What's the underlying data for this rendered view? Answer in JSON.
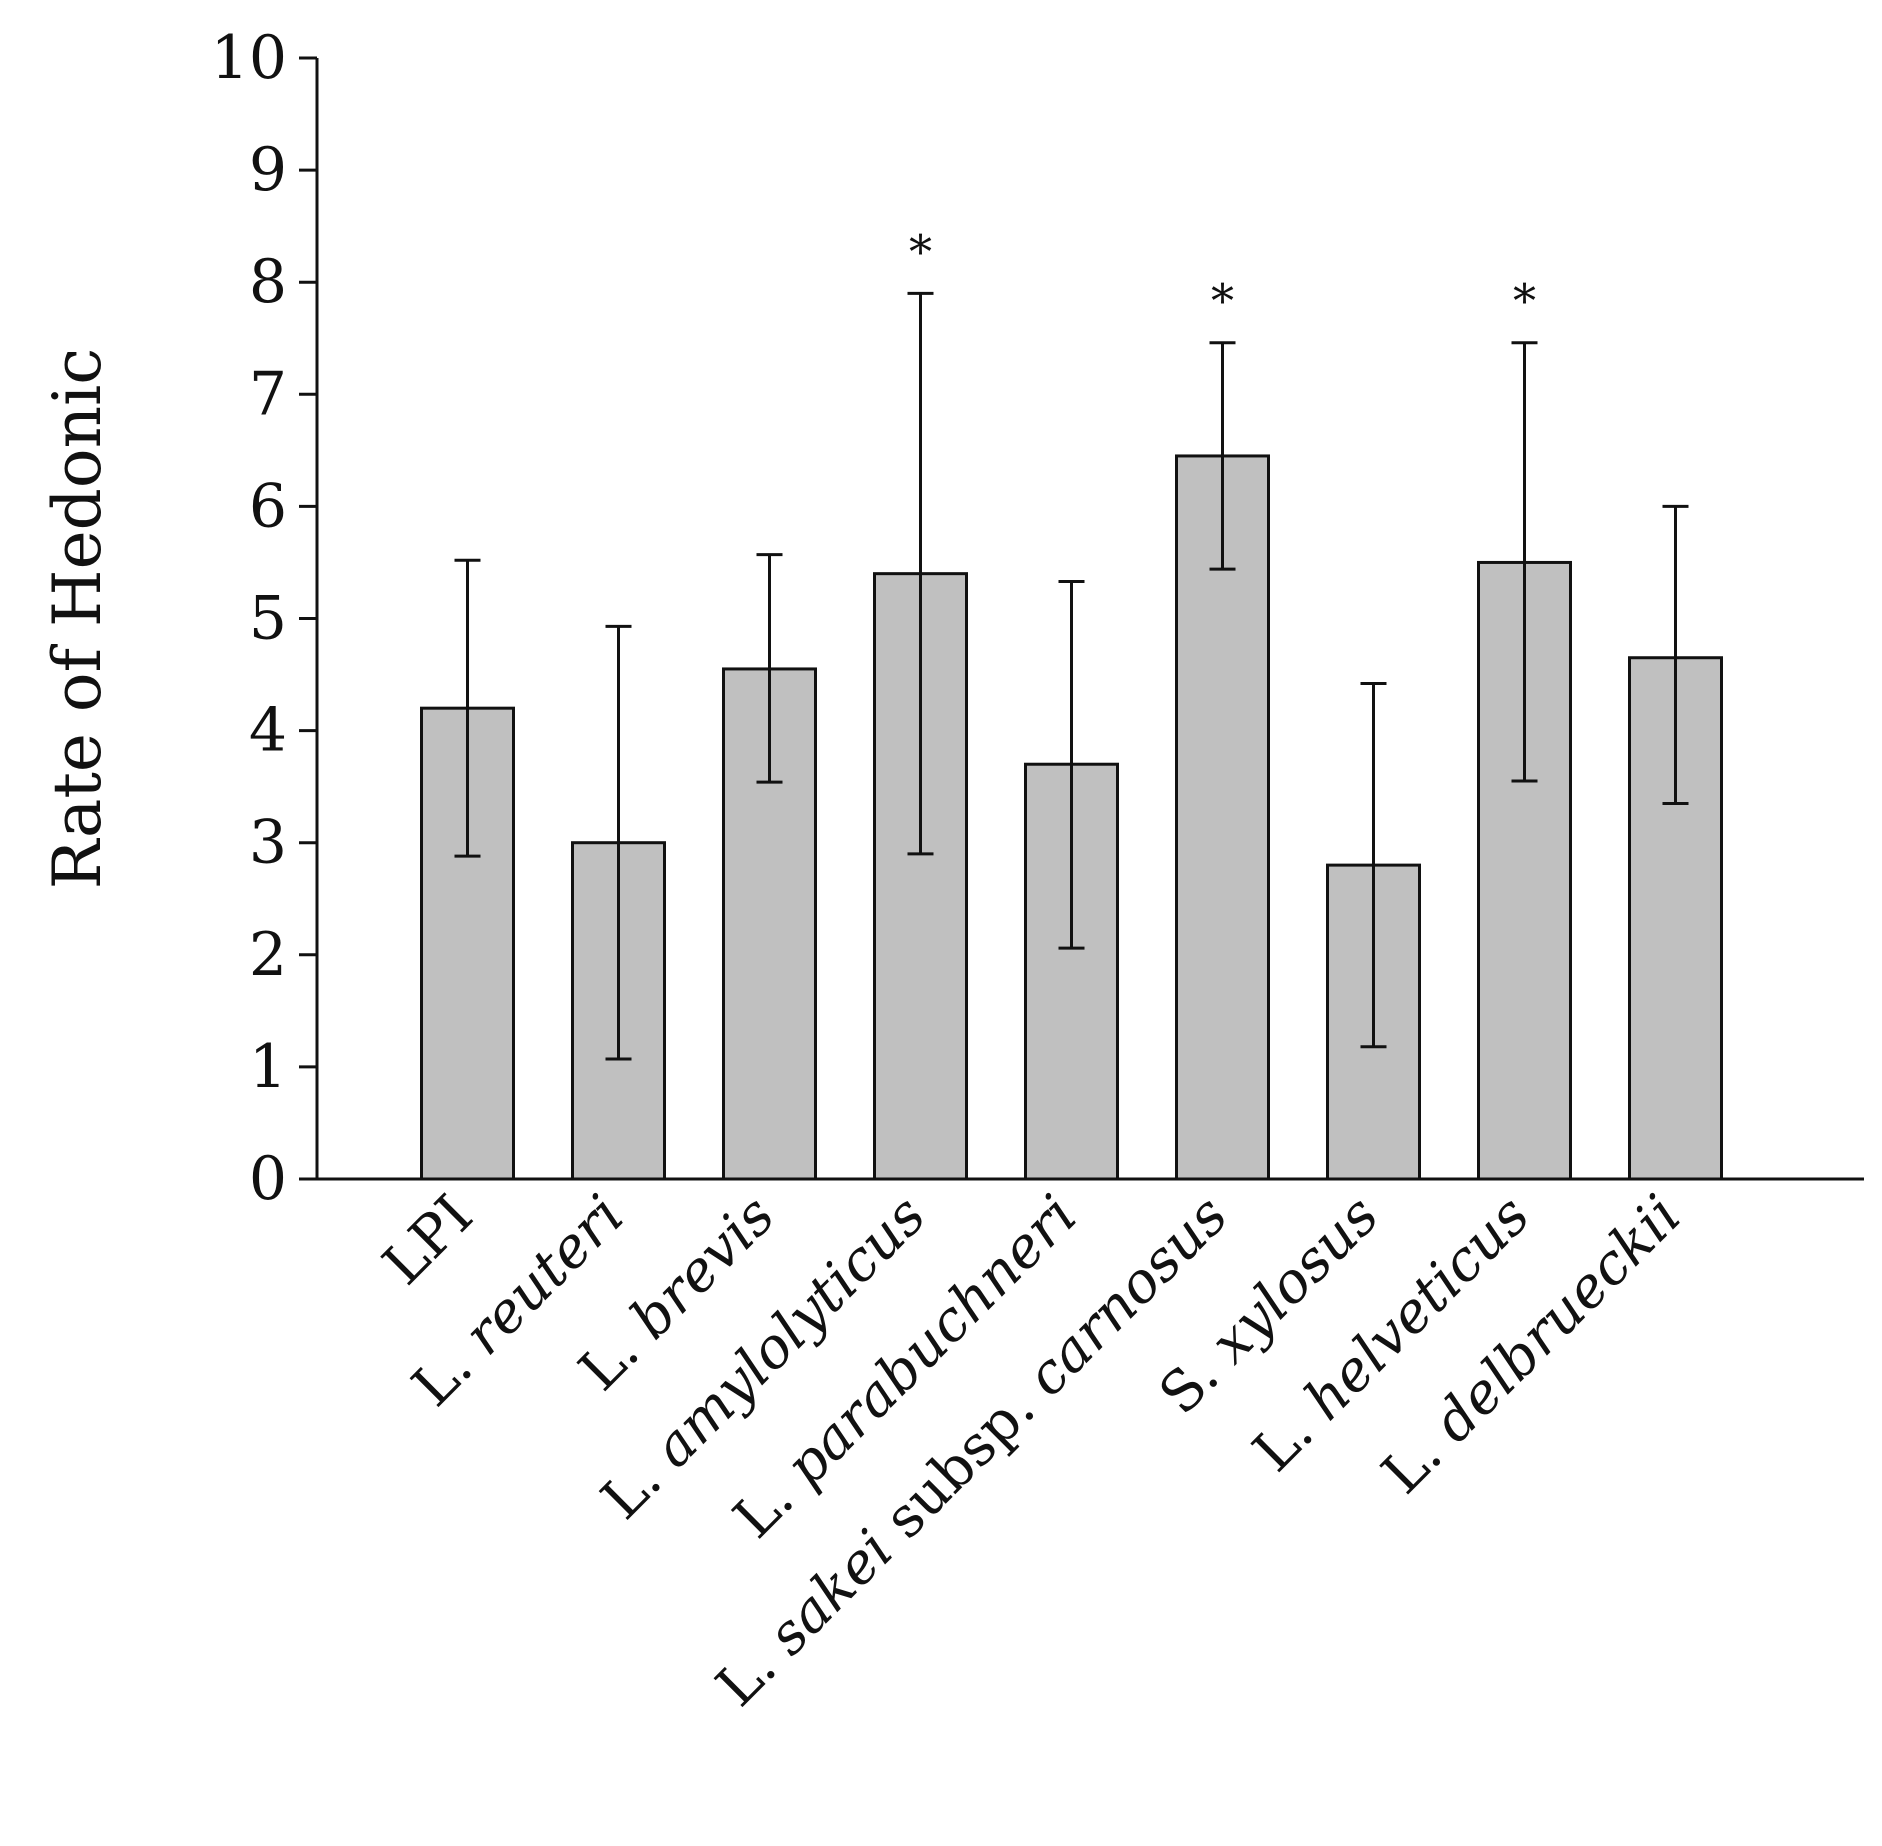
{
  "chart_data": {
    "type": "bar",
    "title": "",
    "xlabel": "",
    "ylabel": "Rate of Hedonic",
    "ylim": [
      0,
      10
    ],
    "yticks": [
      0,
      1,
      2,
      3,
      4,
      5,
      6,
      7,
      8,
      9,
      10
    ],
    "grid": false,
    "categories": [
      {
        "label": "LPI",
        "parts": [
          {
            "text": "LPI",
            "italic": false
          }
        ]
      },
      {
        "label": "L. reuteri",
        "parts": [
          {
            "text": "L. ",
            "italic": false
          },
          {
            "text": "reuteri",
            "italic": true
          }
        ]
      },
      {
        "label": "L. brevis",
        "parts": [
          {
            "text": "L. ",
            "italic": false
          },
          {
            "text": "brevis",
            "italic": true
          }
        ]
      },
      {
        "label": "L. amylolyticus",
        "parts": [
          {
            "text": "L. ",
            "italic": false
          },
          {
            "text": "amylolyticus",
            "italic": true
          }
        ]
      },
      {
        "label": "L. parabuchneri",
        "parts": [
          {
            "text": "L. ",
            "italic": false
          },
          {
            "text": "parabuchneri",
            "italic": true
          }
        ]
      },
      {
        "label": "L. sakei subsp. carnosus",
        "parts": [
          {
            "text": "L. ",
            "italic": false
          },
          {
            "text": "sakei",
            "italic": true
          },
          {
            "text": " subsp. ",
            "italic": false
          },
          {
            "text": "carnosus",
            "italic": true
          }
        ]
      },
      {
        "label": "S. xylosus",
        "parts": [
          {
            "text": "S. ",
            "italic": false
          },
          {
            "text": "xylosus",
            "italic": true
          }
        ]
      },
      {
        "label": "L. helveticus",
        "parts": [
          {
            "text": "L. ",
            "italic": false
          },
          {
            "text": "helveticus",
            "italic": true
          }
        ]
      },
      {
        "label": "L. delbrueckii",
        "parts": [
          {
            "text": "L. ",
            "italic": false
          },
          {
            "text": "delbrueckii",
            "italic": true
          }
        ]
      }
    ],
    "values": [
      4.2,
      3.0,
      4.55,
      5.4,
      3.7,
      6.45,
      2.8,
      5.5,
      4.65
    ],
    "error_high": [
      5.52,
      4.93,
      5.57,
      7.9,
      5.33,
      7.46,
      4.42,
      7.46,
      6.0
    ],
    "error_low": [
      2.88,
      1.07,
      3.54,
      2.9,
      2.06,
      5.44,
      1.18,
      3.55,
      3.35
    ],
    "significance": [
      "",
      "",
      "",
      "*",
      "",
      "*",
      "",
      "*",
      ""
    ],
    "colors": {
      "bar_fill": "#c0c0c0",
      "bar_stroke": "#111111",
      "axis": "#111111",
      "error_bar": "#111111"
    }
  }
}
